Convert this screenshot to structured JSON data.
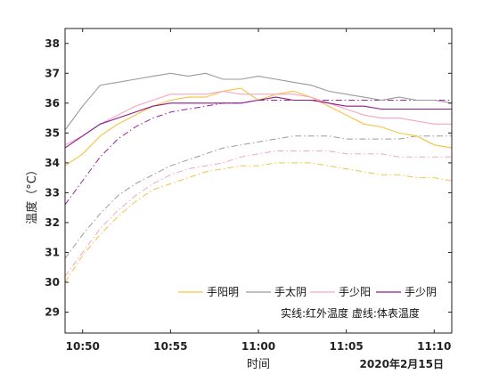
{
  "chart_data": {
    "type": "line",
    "xlabel": "时间",
    "ylabel": "温度（°C）",
    "date_label": "2020年2月15日",
    "x_ticks": [
      "10:50",
      "10:55",
      "11:00",
      "11:05",
      "11:10"
    ],
    "x_range": [
      "10:49",
      "11:11"
    ],
    "ylim": [
      28.3,
      38.5
    ],
    "y_ticks": [
      29,
      30,
      31,
      32,
      33,
      34,
      35,
      36,
      37,
      38
    ],
    "grid": false,
    "legend_position": "bottom-right",
    "note": "实线:红外温度    虚线:体表温度",
    "series": [
      {
        "name": "手阳明",
        "color": "#f5c242",
        "style": "solid",
        "points": [
          [
            "10:49",
            33.9
          ],
          [
            "10:50",
            34.3
          ],
          [
            "10:51",
            34.9
          ],
          [
            "10:52",
            35.3
          ],
          [
            "10:53",
            35.6
          ],
          [
            "10:54",
            35.9
          ],
          [
            "10:55",
            36.1
          ],
          [
            "10:56",
            36.2
          ],
          [
            "10:57",
            36.2
          ],
          [
            "10:58",
            36.4
          ],
          [
            "10:59",
            36.5
          ],
          [
            "11:00",
            36.1
          ],
          [
            "11:01",
            36.3
          ],
          [
            "11:02",
            36.4
          ],
          [
            "11:03",
            36.2
          ],
          [
            "11:04",
            35.9
          ],
          [
            "11:05",
            35.6
          ],
          [
            "11:06",
            35.3
          ],
          [
            "11:07",
            35.2
          ],
          [
            "11:08",
            35.0
          ],
          [
            "11:09",
            34.9
          ],
          [
            "11:10",
            34.6
          ],
          [
            "11:11",
            34.5
          ]
        ]
      },
      {
        "name": "手太阴",
        "color": "#9a9a9a",
        "style": "solid",
        "points": [
          [
            "10:49",
            35.1
          ],
          [
            "10:50",
            35.9
          ],
          [
            "10:51",
            36.6
          ],
          [
            "10:52",
            36.7
          ],
          [
            "10:53",
            36.8
          ],
          [
            "10:54",
            36.9
          ],
          [
            "10:55",
            37.0
          ],
          [
            "10:56",
            36.9
          ],
          [
            "10:57",
            37.0
          ],
          [
            "10:58",
            36.8
          ],
          [
            "10:59",
            36.8
          ],
          [
            "11:00",
            36.9
          ],
          [
            "11:01",
            36.8
          ],
          [
            "11:02",
            36.7
          ],
          [
            "11:03",
            36.6
          ],
          [
            "11:04",
            36.4
          ],
          [
            "11:05",
            36.3
          ],
          [
            "11:06",
            36.2
          ],
          [
            "11:07",
            36.1
          ],
          [
            "11:08",
            36.2
          ],
          [
            "11:09",
            36.1
          ],
          [
            "11:10",
            36.1
          ],
          [
            "11:11",
            36.0
          ]
        ]
      },
      {
        "name": "手少阳",
        "color": "#f4a6c0",
        "style": "solid",
        "points": [
          [
            "10:49",
            34.6
          ],
          [
            "10:50",
            34.9
          ],
          [
            "10:51",
            35.3
          ],
          [
            "10:52",
            35.6
          ],
          [
            "10:53",
            35.9
          ],
          [
            "10:54",
            36.1
          ],
          [
            "10:55",
            36.3
          ],
          [
            "10:56",
            36.3
          ],
          [
            "10:57",
            36.3
          ],
          [
            "10:58",
            36.4
          ],
          [
            "10:59",
            36.3
          ],
          [
            "11:00",
            36.3
          ],
          [
            "11:01",
            36.3
          ],
          [
            "11:02",
            36.3
          ],
          [
            "11:03",
            36.2
          ],
          [
            "11:04",
            36.0
          ],
          [
            "11:05",
            35.8
          ],
          [
            "11:06",
            35.6
          ],
          [
            "11:07",
            35.5
          ],
          [
            "11:08",
            35.5
          ],
          [
            "11:09",
            35.4
          ],
          [
            "11:10",
            35.3
          ],
          [
            "11:11",
            35.3
          ]
        ]
      },
      {
        "name": "手少阴",
        "color": "#8b1a8b",
        "style": "solid",
        "points": [
          [
            "10:49",
            34.5
          ],
          [
            "10:50",
            34.9
          ],
          [
            "10:51",
            35.3
          ],
          [
            "10:52",
            35.5
          ],
          [
            "10:53",
            35.7
          ],
          [
            "10:54",
            35.9
          ],
          [
            "10:55",
            36.0
          ],
          [
            "10:56",
            36.0
          ],
          [
            "10:57",
            36.0
          ],
          [
            "10:58",
            36.0
          ],
          [
            "10:59",
            36.0
          ],
          [
            "11:00",
            36.1
          ],
          [
            "11:01",
            36.2
          ],
          [
            "11:02",
            36.1
          ],
          [
            "11:03",
            36.1
          ],
          [
            "11:04",
            36.0
          ],
          [
            "11:05",
            35.9
          ],
          [
            "11:06",
            35.9
          ],
          [
            "11:07",
            35.8
          ],
          [
            "11:08",
            35.8
          ],
          [
            "11:09",
            35.8
          ],
          [
            "11:10",
            35.8
          ],
          [
            "11:11",
            35.8
          ]
        ]
      }
    ],
    "dashed_series": [
      {
        "color": "#f5c242",
        "style": "dashdot",
        "points": [
          [
            "10:49",
            30.0
          ],
          [
            "10:50",
            30.9
          ],
          [
            "10:51",
            31.6
          ],
          [
            "10:52",
            32.2
          ],
          [
            "10:53",
            32.7
          ],
          [
            "10:54",
            33.1
          ],
          [
            "10:55",
            33.3
          ],
          [
            "10:56",
            33.5
          ],
          [
            "10:57",
            33.7
          ],
          [
            "10:58",
            33.8
          ],
          [
            "10:59",
            33.9
          ],
          [
            "11:00",
            33.9
          ],
          [
            "11:01",
            34.0
          ],
          [
            "11:02",
            34.0
          ],
          [
            "11:03",
            34.0
          ],
          [
            "11:04",
            33.9
          ],
          [
            "11:05",
            33.8
          ],
          [
            "11:06",
            33.7
          ],
          [
            "11:07",
            33.6
          ],
          [
            "11:08",
            33.6
          ],
          [
            "11:09",
            33.5
          ],
          [
            "11:10",
            33.5
          ],
          [
            "11:11",
            33.4
          ]
        ]
      },
      {
        "color": "#9a9a9a",
        "style": "dashdot",
        "points": [
          [
            "10:49",
            30.8
          ],
          [
            "10:50",
            31.6
          ],
          [
            "10:51",
            32.3
          ],
          [
            "10:52",
            32.9
          ],
          [
            "10:53",
            33.3
          ],
          [
            "10:54",
            33.6
          ],
          [
            "10:55",
            33.9
          ],
          [
            "10:56",
            34.1
          ],
          [
            "10:57",
            34.3
          ],
          [
            "10:58",
            34.5
          ],
          [
            "10:59",
            34.6
          ],
          [
            "11:00",
            34.7
          ],
          [
            "11:01",
            34.8
          ],
          [
            "11:02",
            34.9
          ],
          [
            "11:03",
            34.9
          ],
          [
            "11:04",
            34.9
          ],
          [
            "11:05",
            34.8
          ],
          [
            "11:06",
            34.8
          ],
          [
            "11:07",
            34.8
          ],
          [
            "11:08",
            34.8
          ],
          [
            "11:09",
            34.9
          ],
          [
            "11:10",
            34.9
          ],
          [
            "11:11",
            34.9
          ]
        ]
      },
      {
        "color": "#f4a6c0",
        "style": "dashdot",
        "points": [
          [
            "10:49",
            30.2
          ],
          [
            "10:50",
            31.0
          ],
          [
            "10:51",
            31.8
          ],
          [
            "10:52",
            32.4
          ],
          [
            "10:53",
            32.9
          ],
          [
            "10:54",
            33.3
          ],
          [
            "10:55",
            33.6
          ],
          [
            "10:56",
            33.8
          ],
          [
            "10:57",
            33.9
          ],
          [
            "10:58",
            34.0
          ],
          [
            "10:59",
            34.2
          ],
          [
            "11:00",
            34.3
          ],
          [
            "11:01",
            34.4
          ],
          [
            "11:02",
            34.4
          ],
          [
            "11:03",
            34.4
          ],
          [
            "11:04",
            34.4
          ],
          [
            "11:05",
            34.3
          ],
          [
            "11:06",
            34.3
          ],
          [
            "11:07",
            34.3
          ],
          [
            "11:08",
            34.2
          ],
          [
            "11:09",
            34.2
          ],
          [
            "11:10",
            34.2
          ],
          [
            "11:11",
            34.2
          ]
        ]
      },
      {
        "color": "#a020a0",
        "style": "dashdot",
        "points": [
          [
            "10:49",
            32.6
          ],
          [
            "10:50",
            33.4
          ],
          [
            "10:51",
            34.2
          ],
          [
            "10:52",
            34.8
          ],
          [
            "10:53",
            35.2
          ],
          [
            "10:54",
            35.5
          ],
          [
            "10:55",
            35.7
          ],
          [
            "10:56",
            35.8
          ],
          [
            "10:57",
            35.9
          ],
          [
            "10:58",
            36.0
          ],
          [
            "10:59",
            36.0
          ],
          [
            "11:00",
            36.1
          ],
          [
            "11:01",
            36.1
          ],
          [
            "11:02",
            36.1
          ],
          [
            "11:03",
            36.1
          ],
          [
            "11:04",
            36.1
          ],
          [
            "11:05",
            36.1
          ],
          [
            "11:06",
            36.1
          ],
          [
            "11:07",
            36.1
          ],
          [
            "11:08",
            36.1
          ],
          [
            "11:09",
            36.1
          ],
          [
            "11:10",
            36.1
          ],
          [
            "11:11",
            36.1
          ]
        ]
      }
    ]
  }
}
